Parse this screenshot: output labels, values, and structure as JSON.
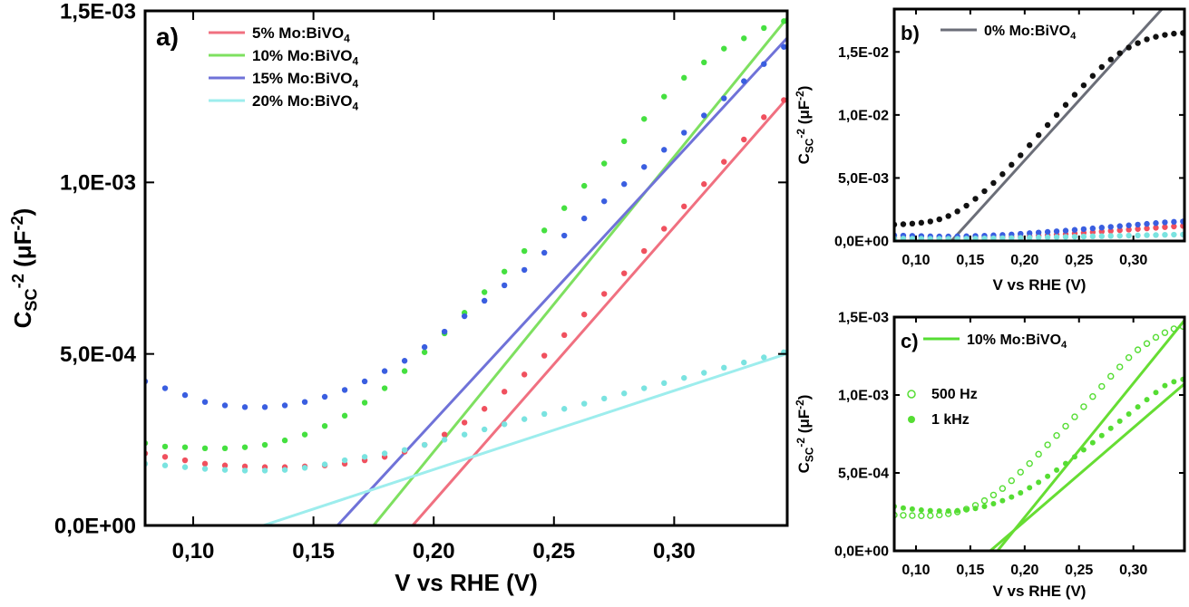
{
  "chart_data": [
    {
      "panel": "a)",
      "type": "scatter",
      "xlabel": "V vs RHE (V)",
      "ylabel": {
        "base": "C",
        "sub": "SC",
        "sup": "-2",
        "unit_open": " (μF",
        "unit_sup": "-2",
        "unit_close": ")"
      },
      "xlim": [
        0.08,
        0.347
      ],
      "ylim": [
        0,
        0.0015
      ],
      "xticks": [
        0.1,
        0.15,
        0.2,
        0.25,
        0.3
      ],
      "xtick_labels": [
        "0,10",
        "0,15",
        "0,20",
        "0,25",
        "0,30"
      ],
      "yticks": [
        0,
        0.0005,
        0.001,
        0.0015
      ],
      "ytick_labels": [
        "0,0E+00",
        "5,0E-04",
        "1,0E-03",
        "1,5E-03"
      ],
      "legend_position": "top-center",
      "series": [
        {
          "name": {
            "main": "5% Mo:BiVO",
            "sub": "4"
          },
          "color": "#f0505e",
          "fit_color": "#f07080",
          "fit": {
            "slope": 0.008,
            "intercept": -0.00153
          },
          "points": {
            "x_start": 0.08,
            "x_step": 0.0083,
            "n": 33,
            "y": [
              0.00021,
              0.0002,
              0.00019,
              0.00018,
              0.000175,
              0.000172,
              0.00017,
              0.00017,
              0.000172,
              0.000175,
              0.00018,
              0.00019,
              0.0002,
              0.000215,
              0.000235,
              0.000265,
              0.0003,
              0.00034,
              0.00039,
              0.00044,
              0.000495,
              0.000555,
              0.000615,
              0.000675,
              0.000735,
              0.0008,
              0.000865,
              0.00093,
              0.000995,
              0.00106,
              0.001125,
              0.00119,
              0.00124
            ]
          }
        },
        {
          "name": {
            "main": "10% Mo:BiVO",
            "sub": "4"
          },
          "color": "#45e040",
          "fit_color": "#7ee060",
          "fit": {
            "slope": 0.0086,
            "intercept": -0.001505
          },
          "points": {
            "x_start": 0.08,
            "x_step": 0.0083,
            "n": 33,
            "y": [
              0.00024,
              0.00023,
              0.000228,
              0.000225,
              0.000225,
              0.000228,
              0.000235,
              0.000248,
              0.000265,
              0.00029,
              0.00032,
              0.000358,
              0.0004,
              0.00045,
              0.000505,
              0.00056,
              0.00062,
              0.00068,
              0.00074,
              0.0008,
              0.00086,
              0.000925,
              0.00099,
              0.001055,
              0.00112,
              0.001185,
              0.00125,
              0.001305,
              0.00135,
              0.00139,
              0.00142,
              0.00145,
              0.00147
            ]
          }
        },
        {
          "name": {
            "main": "15% Mo:BiVO",
            "sub": "4"
          },
          "color": "#3a5ee0",
          "fit_color": "#6f72d8",
          "fit": {
            "slope": 0.0076,
            "intercept": -0.001216
          },
          "points": {
            "x_start": 0.08,
            "x_step": 0.0083,
            "n": 33,
            "y": [
              0.00042,
              0.0004,
              0.00038,
              0.00036,
              0.00035,
              0.000345,
              0.000345,
              0.00035,
              0.00036,
              0.000375,
              0.000395,
              0.00042,
              0.00045,
              0.00048,
              0.00052,
              0.000565,
              0.00061,
              0.000655,
              0.0007,
              0.000745,
              0.000795,
              0.000845,
              0.000895,
              0.000945,
              0.000995,
              0.001045,
              0.001095,
              0.001145,
              0.001195,
              0.001245,
              0.001295,
              0.001345,
              0.001395
            ]
          }
        },
        {
          "name": {
            "main": "20% Mo:BiVO",
            "sub": "4"
          },
          "color": "#7ae3e0",
          "fit_color": "#9deded",
          "fit": {
            "slope": 0.0023,
            "intercept": -0.000297
          },
          "points": {
            "x_start": 0.08,
            "x_step": 0.0083,
            "n": 33,
            "y": [
              0.00018,
              0.000175,
              0.00017,
              0.000165,
              0.000162,
              0.00016,
              0.00016,
              0.000162,
              0.000168,
              0.000178,
              0.00019,
              0.0002,
              0.00021,
              0.00022,
              0.000235,
              0.00025,
              0.000265,
              0.00028,
              0.000295,
              0.00031,
              0.000325,
              0.00034,
              0.000355,
              0.00037,
              0.000385,
              0.0004,
              0.000415,
              0.00043,
              0.000445,
              0.00046,
              0.000475,
              0.00049,
              0.000505
            ]
          }
        }
      ]
    },
    {
      "panel": "b)",
      "type": "scatter",
      "xlabel": "V vs RHE (V)",
      "ylabel": {
        "base": "C",
        "sub": "SC",
        "sup": "-2",
        "unit_open": " (μF",
        "unit_sup": "-2",
        "unit_close": ")"
      },
      "xlim": [
        0.08,
        0.347
      ],
      "ylim": [
        0,
        0.0184
      ],
      "xticks": [
        0.1,
        0.15,
        0.2,
        0.25,
        0.3
      ],
      "xtick_labels": [
        "0,10",
        "0,15",
        "0,20",
        "0,25",
        "0,30"
      ],
      "yticks": [
        0,
        0.005,
        0.01,
        0.015
      ],
      "ytick_labels": [
        "0,0E+00",
        "5,0E-03",
        "1,0E-02",
        "1,5E-02"
      ],
      "legend_position": "top-center",
      "series": [
        {
          "name": {
            "main": "0% Mo:BiVO",
            "sub": "4"
          },
          "color": "#111111",
          "fit_color": "#6b6e78",
          "fit": {
            "slope": 0.095,
            "intercept": -0.0126
          },
          "points": {
            "x_start": 0.08,
            "x_step": 0.0083,
            "n": 33,
            "y": [
              0.0013,
              0.00133,
              0.00138,
              0.00145,
              0.00155,
              0.00172,
              0.00198,
              0.00235,
              0.0028,
              0.00335,
              0.00395,
              0.0046,
              0.0053,
              0.00605,
              0.0068,
              0.0076,
              0.0084,
              0.0092,
              0.01,
              0.0108,
              0.0116,
              0.01235,
              0.0131,
              0.0138,
              0.0144,
              0.0149,
              0.01535,
              0.0157,
              0.016,
              0.0162,
              0.01635,
              0.01645,
              0.0165
            ]
          }
        },
        {
          "name": {
            "main": "",
            "sub": ""
          },
          "color": "#f0505e",
          "points": {
            "x_start": 0.08,
            "x_step": 0.0083,
            "n": 33,
            "y": [
              0.00025,
              0.00024,
              0.00023,
              0.00022,
              0.00021,
              0.00021,
              0.00021,
              0.00021,
              0.00022,
              0.00023,
              0.00024,
              0.00026,
              0.00028,
              0.00031,
              0.00034,
              0.00038,
              0.00042,
              0.00046,
              0.0005,
              0.00055,
              0.0006,
              0.00065,
              0.0007,
              0.00075,
              0.0008,
              0.00085,
              0.0009,
              0.00095,
              0.001,
              0.00105,
              0.0011,
              0.00115,
              0.0012
            ]
          }
        },
        {
          "name": {
            "main": "",
            "sub": ""
          },
          "color": "#3a5ee0",
          "points": {
            "x_start": 0.08,
            "x_step": 0.0083,
            "n": 33,
            "y": [
              0.00045,
              0.00043,
              0.00041,
              0.00039,
              0.00037,
              0.00036,
              0.00036,
              0.00037,
              0.00038,
              0.0004,
              0.00042,
              0.00045,
              0.00048,
              0.00052,
              0.00057,
              0.00062,
              0.00067,
              0.00072,
              0.00077,
              0.00082,
              0.00088,
              0.00094,
              0.001,
              0.00106,
              0.00112,
              0.00118,
              0.00124,
              0.0013,
              0.00136,
              0.00142,
              0.00148,
              0.00152,
              0.00155
            ]
          }
        },
        {
          "name": {
            "main": "",
            "sub": ""
          },
          "color": "#7ae3e0",
          "points": {
            "x_start": 0.08,
            "x_step": 0.0083,
            "n": 33,
            "y": [
              0.0002,
              0.00019,
              0.00018,
              0.00018,
              0.00017,
              0.00017,
              0.00017,
              0.00017,
              0.00018,
              0.00019,
              0.0002,
              0.00021,
              0.00022,
              0.00023,
              0.00025,
              0.00026,
              0.00028,
              0.00029,
              0.00031,
              0.00032,
              0.00034,
              0.00035,
              0.00037,
              0.00038,
              0.0004,
              0.00041,
              0.00043,
              0.00044,
              0.00046,
              0.00047,
              0.00049,
              0.0005,
              0.00051
            ]
          }
        }
      ]
    },
    {
      "panel": "c)",
      "type": "scatter",
      "xlabel": "V vs RHE (V)",
      "ylabel": {
        "base": "C",
        "sub": "SC",
        "sup": "-2",
        "unit_open": " (μF",
        "unit_sup": "-2",
        "unit_close": ")"
      },
      "xlim": [
        0.08,
        0.347
      ],
      "ylim": [
        0,
        0.0015
      ],
      "xticks": [
        0.1,
        0.15,
        0.2,
        0.25,
        0.3
      ],
      "xtick_labels": [
        "0,10",
        "0,15",
        "0,20",
        "0,25",
        "0,30"
      ],
      "yticks": [
        0,
        0.0005,
        0.001,
        0.0015
      ],
      "ytick_labels": [
        "0,0E+00",
        "5,0E-04",
        "1,0E-03",
        "1,5E-03"
      ],
      "legend_position": "top-center",
      "legend_title": {
        "main": "10% Mo:BiVO",
        "sub": "4"
      },
      "legend_color": "#55dd33",
      "series": [
        {
          "name": {
            "main": "500 Hz",
            "sub": ""
          },
          "color": "#55dd33",
          "marker": "open",
          "fit_color": "#66dd33",
          "fit": {
            "slope": 0.0086,
            "intercept": -0.001505
          },
          "points": {
            "x_start": 0.08,
            "x_step": 0.0083,
            "n": 33,
            "y": [
              0.00023,
              0.000228,
              0.000226,
              0.000225,
              0.000226,
              0.00023,
              0.000238,
              0.00025,
              0.000268,
              0.000292,
              0.000322,
              0.000358,
              0.0004,
              0.00045,
              0.000505,
              0.00056,
              0.00062,
              0.00068,
              0.00074,
              0.0008,
              0.00086,
              0.000925,
              0.00099,
              0.001055,
              0.00112,
              0.00118,
              0.00124,
              0.00129,
              0.00133,
              0.00137,
              0.0014,
              0.001425,
              0.00144
            ]
          }
        },
        {
          "name": {
            "main": "1 kHz",
            "sub": ""
          },
          "color": "#55dd33",
          "marker": "filled",
          "fit_color": "#66dd33",
          "fit": {
            "slope": 0.006,
            "intercept": -0.00101
          },
          "points": {
            "x_start": 0.08,
            "x_step": 0.0083,
            "n": 33,
            "y": [
              0.000285,
              0.000275,
              0.000268,
              0.000262,
              0.000258,
              0.000256,
              0.000256,
              0.000258,
              0.000263,
              0.000272,
              0.000285,
              0.000302,
              0.000322,
              0.000345,
              0.000372,
              0.000405,
              0.00044,
              0.000478,
              0.000518,
              0.00056,
              0.000603,
              0.000648,
              0.000694,
              0.00074,
              0.000786,
              0.000832,
              0.000878,
              0.000924,
              0.00097,
              0.001016,
              0.00106,
              0.001085,
              0.0011
            ]
          }
        }
      ]
    }
  ]
}
